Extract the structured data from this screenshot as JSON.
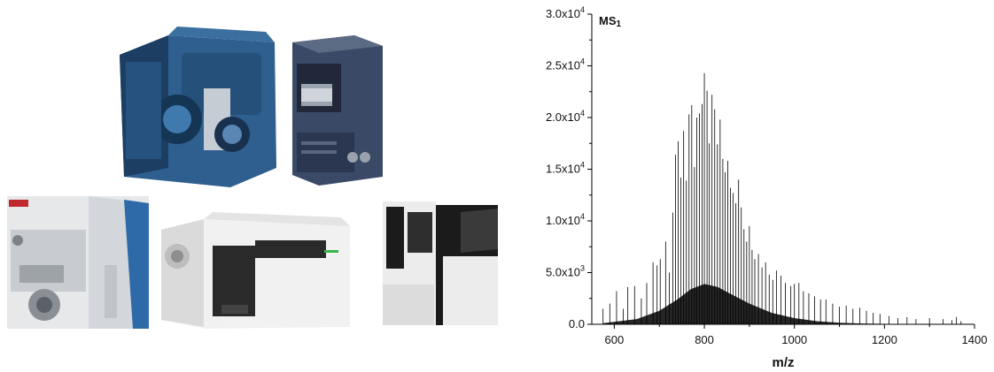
{
  "images": [
    {
      "name": "triple-quadrupole-ms-instrument",
      "colors": {
        "body": "#2f5f8e",
        "dark": "#1d3e63",
        "panel": "#d8dde3"
      }
    },
    {
      "name": "waters-ms-instrument",
      "colors": {
        "body": "#3a4a66",
        "dark": "#20283a",
        "panel": "#9aa3ad"
      }
    },
    {
      "name": "thermo-ms-instrument",
      "colors": {
        "body": "#e6e8ea",
        "accent": "#2e6aa8",
        "logo": "#c1282d"
      }
    },
    {
      "name": "agilent-ms-instrument",
      "colors": {
        "body": "#f1f1f1",
        "dark": "#2a2a2a",
        "accent": "#39b54a"
      }
    },
    {
      "name": "shimadzu-ms-instrument",
      "colors": {
        "body": "#ececec",
        "dark": "#1b1b1b"
      }
    }
  ],
  "chart_data": {
    "type": "line",
    "label": "MS",
    "label_subscript": "1",
    "xlabel": "m/z",
    "ylabel": "",
    "xlim": [
      550,
      1400
    ],
    "ylim": [
      0,
      30000
    ],
    "x_ticks": [
      600,
      800,
      1000,
      1200,
      1400
    ],
    "x_tick_labels": [
      "600",
      "800",
      "1000",
      "1200",
      "1400"
    ],
    "y_ticks": [
      0,
      5000,
      10000,
      15000,
      20000,
      25000,
      30000
    ],
    "y_tick_labels": [
      {
        "mantissa": "0.0",
        "exp": ""
      },
      {
        "mantissa": "5.0x10",
        "exp": "3"
      },
      {
        "mantissa": "1.0x10",
        "exp": "4"
      },
      {
        "mantissa": "1.5x10",
        "exp": "4"
      },
      {
        "mantissa": "2.0x10",
        "exp": "4"
      },
      {
        "mantissa": "2.5x10",
        "exp": "4"
      },
      {
        "mantissa": "3.0x10",
        "exp": "4"
      }
    ],
    "grid": false,
    "legend": "none",
    "line_color": "#000000",
    "peaks": {
      "x": [
        575,
        590,
        605,
        620,
        630,
        645,
        660,
        672,
        686,
        695,
        702,
        714,
        722,
        730,
        736,
        742,
        748,
        754,
        760,
        766,
        772,
        778,
        783,
        789,
        795,
        800,
        806,
        811,
        817,
        823,
        829,
        835,
        841,
        846,
        852,
        858,
        864,
        870,
        876,
        882,
        888,
        894,
        900,
        906,
        912,
        920,
        928,
        936,
        944,
        952,
        960,
        970,
        980,
        992,
        1000,
        1010,
        1020,
        1032,
        1045,
        1058,
        1070,
        1085,
        1100,
        1115,
        1130,
        1145,
        1160,
        1175,
        1190,
        1210,
        1230,
        1250,
        1270,
        1300,
        1330,
        1350,
        1360,
        1370
      ],
      "y": [
        1500,
        2000,
        3200,
        1500,
        3600,
        3700,
        2500,
        4000,
        6000,
        5700,
        6300,
        8000,
        5000,
        10800,
        16400,
        17700,
        14200,
        18700,
        13900,
        20300,
        21200,
        15200,
        20000,
        20400,
        21300,
        24300,
        22600,
        17500,
        22200,
        20800,
        17400,
        19800,
        16000,
        14700,
        15800,
        13200,
        12700,
        11700,
        14000,
        11300,
        9200,
        8000,
        9500,
        7200,
        6300,
        6800,
        5500,
        6000,
        4800,
        4300,
        5200,
        4700,
        4000,
        3700,
        3900,
        4000,
        3200,
        3000,
        2700,
        2400,
        2400,
        2000,
        1700,
        1800,
        1500,
        1600,
        1300,
        1100,
        1000,
        800,
        600,
        700,
        500,
        600,
        500,
        400,
        700,
        300
      ]
    },
    "baseline": {
      "x": [
        575,
        650,
        700,
        740,
        770,
        800,
        830,
        860,
        900,
        950,
        1000,
        1050,
        1100,
        1150,
        1200,
        1250
      ],
      "y": [
        100,
        500,
        1300,
        2400,
        3400,
        3900,
        3600,
        2900,
        2000,
        1100,
        600,
        300,
        150,
        80,
        40,
        0
      ]
    }
  }
}
